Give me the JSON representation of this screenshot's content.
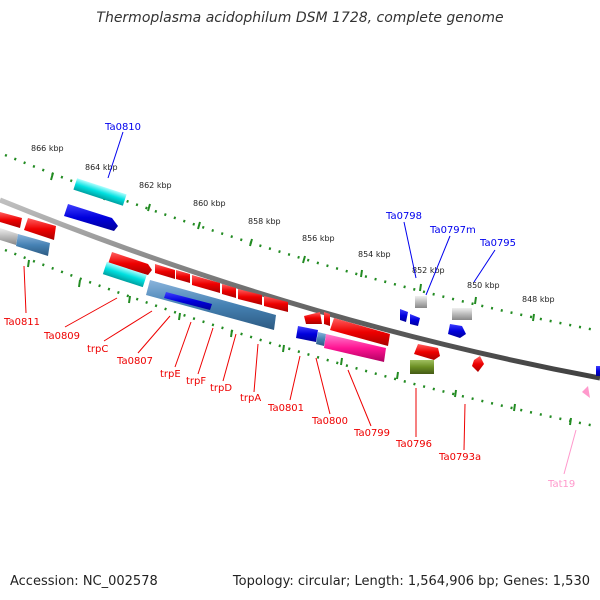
{
  "title": "Thermoplasma acidophilum DSM 1728, complete genome",
  "footer": {
    "accession": "Accession: NC_002578",
    "info": "Topology: circular; Length: 1,564,906 bp; Genes: 1,530"
  },
  "kbp_labels": [
    "866 kbp",
    "864 kbp",
    "862 kbp",
    "860 kbp",
    "858 kbp",
    "856 kbp",
    "854 kbp",
    "852 kbp",
    "850 kbp",
    "848 kbp"
  ],
  "gene_labels": {
    "blue": [
      "Ta0810",
      "Ta0798",
      "Ta0797m",
      "Ta0795"
    ],
    "red": [
      "Ta0811",
      "Ta0809",
      "trpC",
      "Ta0807",
      "trpE",
      "trpF",
      "trpD",
      "trpA",
      "Ta0801",
      "Ta0800",
      "Ta0799",
      "Ta0796",
      "Ta0793a"
    ],
    "pink": [
      "Tat19"
    ]
  },
  "colors": {
    "forward_gene": "#0000ee",
    "reverse_gene": "#ee0000",
    "trna": "#ff99cc",
    "scale_dots": "#228b22",
    "backbone": "#808080"
  }
}
